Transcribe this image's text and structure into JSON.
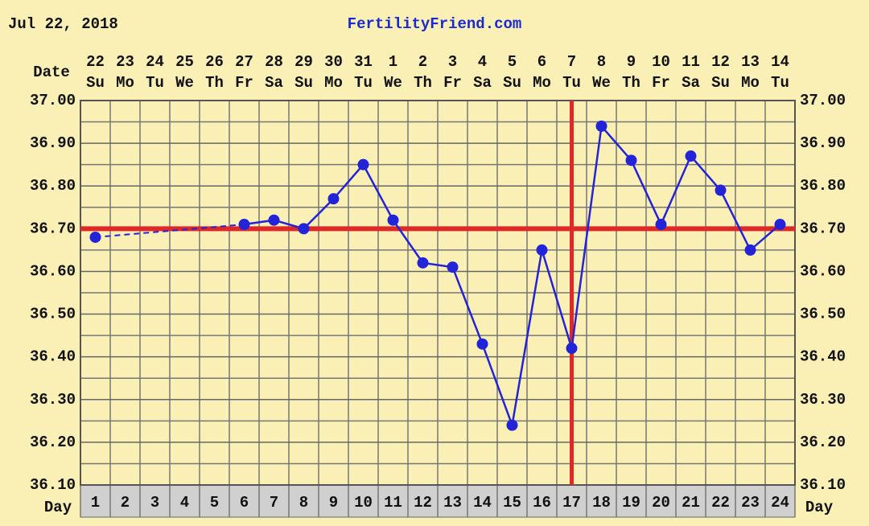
{
  "chart_data": {
    "type": "line",
    "title": "Jul 22, 2018",
    "subtitle": "FertilityFriend.com",
    "date_label": "Date",
    "day_label": "Day",
    "categories": [
      "1",
      "2",
      "3",
      "4",
      "5",
      "6",
      "7",
      "8",
      "9",
      "10",
      "11",
      "12",
      "13",
      "14",
      "15",
      "16",
      "17",
      "18",
      "19",
      "20",
      "21",
      "22",
      "23",
      "24"
    ],
    "dates": [
      "22",
      "23",
      "24",
      "25",
      "26",
      "27",
      "28",
      "29",
      "30",
      "31",
      "1",
      "2",
      "3",
      "4",
      "5",
      "6",
      "7",
      "8",
      "9",
      "10",
      "11",
      "12",
      "13",
      "14"
    ],
    "weekdays": [
      "Su",
      "Mo",
      "Tu",
      "We",
      "Th",
      "Fr",
      "Sa",
      "Su",
      "Mo",
      "Tu",
      "We",
      "Th",
      "Fr",
      "Sa",
      "Su",
      "Mo",
      "Tu",
      "We",
      "Th",
      "Fr",
      "Sa",
      "Su",
      "Mo",
      "Tu"
    ],
    "series": [
      {
        "color": "#2323d8",
        "values": [
          36.68,
          null,
          null,
          null,
          null,
          36.71,
          36.72,
          36.7,
          36.77,
          36.85,
          36.72,
          36.62,
          36.61,
          36.43,
          36.24,
          36.65,
          36.42,
          36.94,
          36.86,
          36.71,
          36.87,
          36.79,
          36.65,
          36.71
        ]
      }
    ],
    "ylim": [
      36.1,
      37.0
    ],
    "yticks": [
      {
        "value": 36.1,
        "label": "36.10"
      },
      {
        "value": 36.2,
        "label": "36.20"
      },
      {
        "value": 36.3,
        "label": "36.30"
      },
      {
        "value": 36.4,
        "label": "36.40"
      },
      {
        "value": 36.5,
        "label": "36.50"
      },
      {
        "value": 36.6,
        "label": "36.60"
      },
      {
        "value": 36.7,
        "label": "36.70"
      },
      {
        "value": 36.8,
        "label": "36.80"
      },
      {
        "value": 36.9,
        "label": "36.90"
      },
      {
        "value": 37.0,
        "label": "37.00"
      }
    ],
    "coverline": 36.7,
    "ovulation_day": "17",
    "reference_color": "#e02828",
    "grid": true
  }
}
